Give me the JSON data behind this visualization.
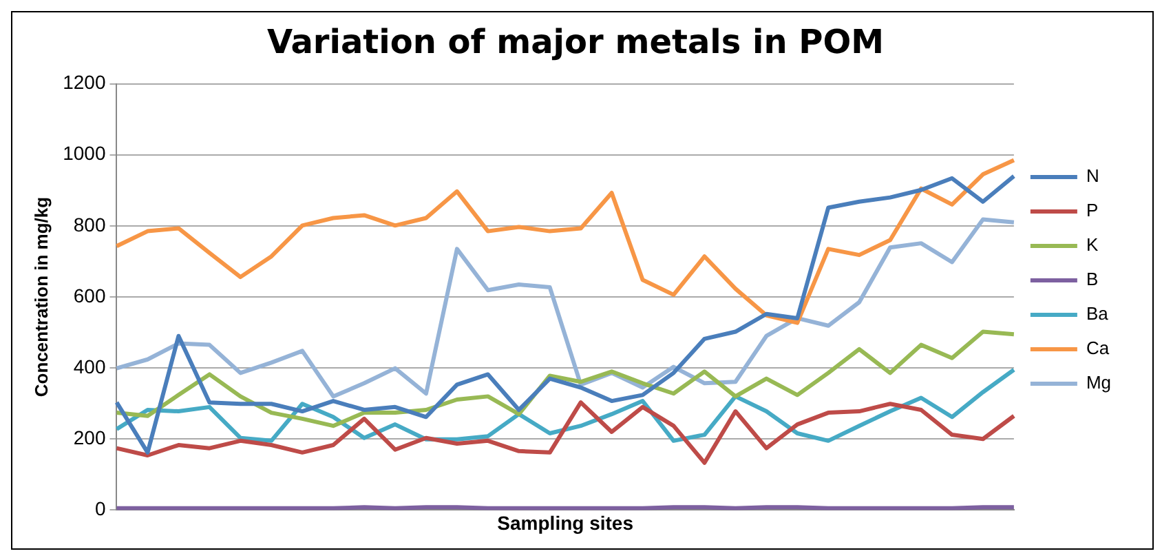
{
  "chart_data": {
    "type": "line",
    "title": "Variation of major metals in POM",
    "xlabel": "Sampling sites",
    "ylabel": "Concentration in mg/kg",
    "categories": [
      null,
      null,
      null,
      null,
      null,
      null,
      null,
      null,
      null,
      null,
      null,
      null,
      null,
      null,
      null,
      null,
      null,
      null,
      null,
      null,
      null,
      null,
      null,
      null,
      null,
      null,
      null,
      null,
      null,
      null
    ],
    "ylim": [
      0,
      1200
    ],
    "yticks": [
      0,
      200,
      400,
      600,
      800,
      1000,
      1200
    ],
    "grid": "y",
    "legend": "right",
    "marker": "none",
    "line_style": "solid",
    "series": [
      {
        "name": "N",
        "color": "#4a7ebb",
        "values": [
          303,
          162,
          490,
          303,
          299,
          299,
          278,
          307,
          282,
          290,
          262,
          353,
          382,
          282,
          370,
          345,
          307,
          324,
          386,
          482,
          502,
          552,
          540,
          851,
          868,
          880,
          901,
          934,
          868,
          940
        ]
      },
      {
        "name": "P",
        "color": "#be4b48",
        "values": [
          174,
          154,
          183,
          174,
          195,
          183,
          162,
          183,
          257,
          170,
          203,
          187,
          195,
          166,
          162,
          303,
          220,
          290,
          237,
          133,
          278,
          174,
          241,
          274,
          278,
          299,
          282,
          212,
          200,
          265
        ]
      },
      {
        "name": "K",
        "color": "#98b954",
        "values": [
          274,
          265,
          324,
          382,
          320,
          274,
          257,
          237,
          274,
          274,
          282,
          311,
          320,
          270,
          378,
          361,
          390,
          357,
          328,
          390,
          320,
          370,
          324,
          386,
          453,
          386,
          465,
          428,
          502,
          495
        ]
      },
      {
        "name": "B",
        "color": "#7d60a0",
        "values": [
          5,
          5,
          5,
          5,
          5,
          5,
          5,
          5,
          8,
          5,
          8,
          8,
          5,
          5,
          5,
          5,
          5,
          5,
          8,
          8,
          5,
          8,
          8,
          5,
          5,
          5,
          5,
          5,
          8,
          8
        ]
      },
      {
        "name": "Ba",
        "color": "#46aac5",
        "values": [
          228,
          282,
          278,
          290,
          203,
          195,
          299,
          262,
          203,
          241,
          199,
          199,
          208,
          270,
          216,
          237,
          270,
          307,
          195,
          212,
          320,
          278,
          216,
          195,
          237,
          278,
          316,
          262,
          332,
          395
        ]
      },
      {
        "name": "Ca",
        "color": "#f79646",
        "values": [
          743,
          785,
          793,
          724,
          656,
          714,
          801,
          822,
          830,
          801,
          822,
          897,
          785,
          797,
          785,
          793,
          893,
          648,
          606,
          714,
          623,
          548,
          527,
          735,
          718,
          760,
          905,
          860,
          945,
          985
        ]
      },
      {
        "name": "Mg",
        "color": "#95b3d7",
        "values": [
          399,
          424,
          469,
          465,
          386,
          415,
          448,
          320,
          357,
          399,
          328,
          735,
          619,
          635,
          627,
          353,
          386,
          345,
          403,
          357,
          361,
          490,
          540,
          519,
          585,
          739,
          751,
          698,
          818,
          810
        ]
      }
    ]
  }
}
